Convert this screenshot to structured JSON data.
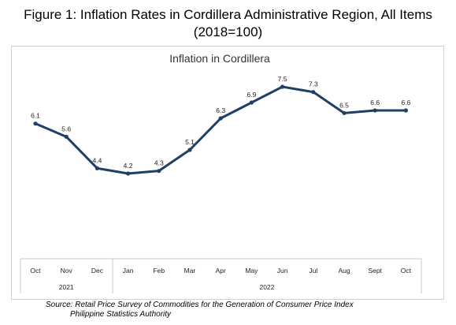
{
  "figure": {
    "title_line1": "Figure 1: Inflation Rates in Cordillera Administrative Region, All Items",
    "title_line2": "(2018=100)"
  },
  "source": {
    "line1": "Source: Retail Price Survey of Commodities for the Generation of Consumer Price Index",
    "line2": "Philippine Statistics Authority"
  },
  "chart_data": {
    "type": "line",
    "title": "Inflation in Cordillera",
    "categories": [
      "Oct",
      "Nov",
      "Dec",
      "Jan",
      "Feb",
      "Mar",
      "Apr",
      "May",
      "Jun",
      "Jul",
      "Aug",
      "Sept",
      "Oct"
    ],
    "years": [
      {
        "label": "2021",
        "count": 3
      },
      {
        "label": "2022",
        "count": 10
      }
    ],
    "series": [
      {
        "values": [
          6.1,
          5.6,
          4.4,
          4.2,
          4.3,
          5.1,
          6.3,
          6.9,
          7.5,
          7.3,
          6.5,
          6.6,
          6.6
        ]
      }
    ],
    "ylim": [
      0,
      9
    ],
    "grid": false,
    "line_color": "#1f3f66"
  }
}
